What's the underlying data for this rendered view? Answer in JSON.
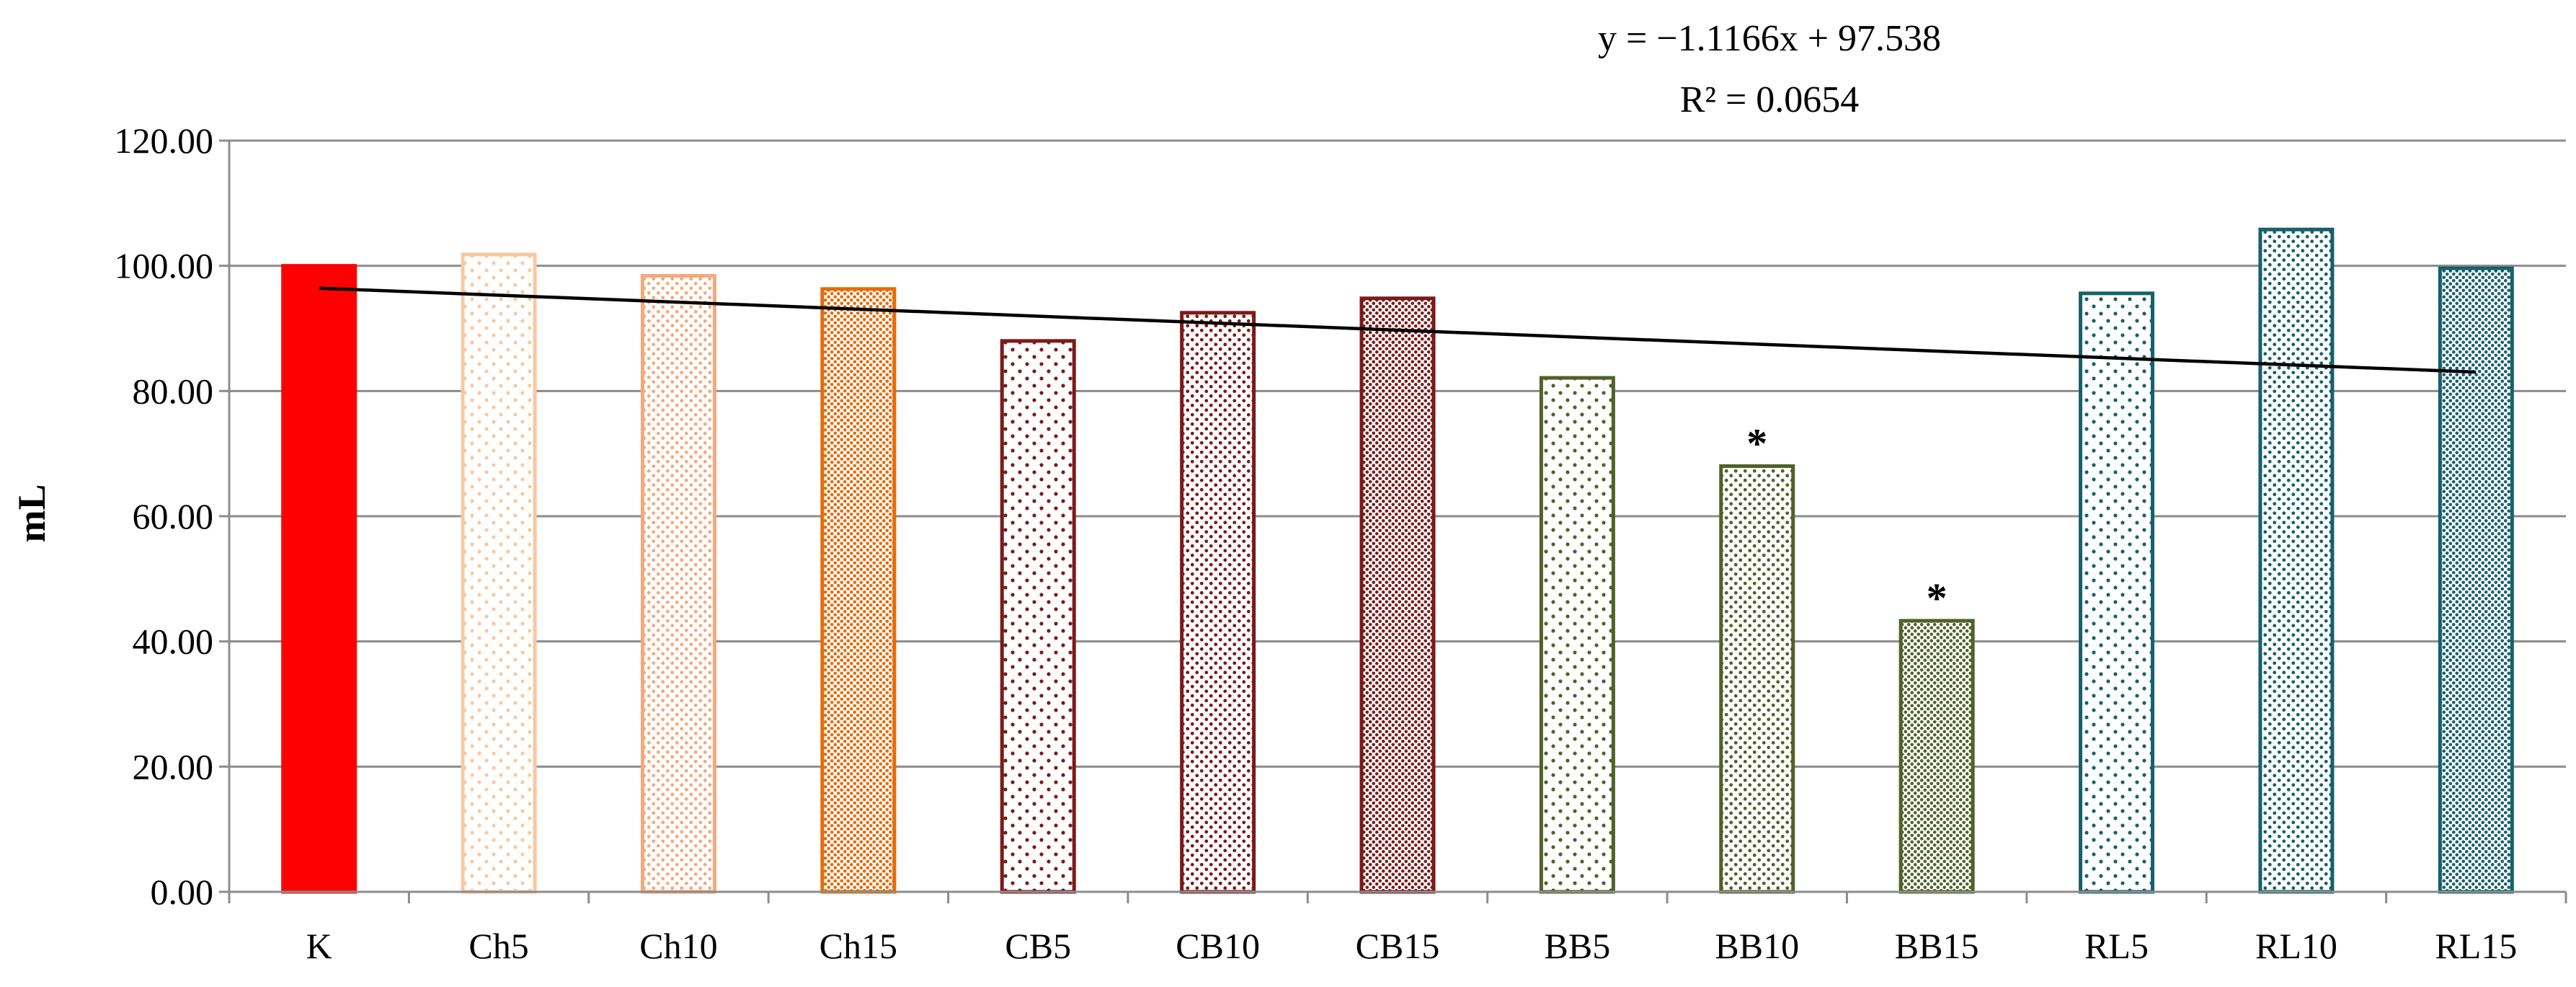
{
  "chart_data": {
    "type": "bar",
    "title": "",
    "xlabel": "",
    "ylabel": "mL",
    "ylim": [
      0,
      120
    ],
    "yticks": [
      "0.00",
      "20.00",
      "40.00",
      "60.00",
      "80.00",
      "100.00",
      "120.00"
    ],
    "categories": [
      "K",
      "Ch5",
      "Ch10",
      "Ch15",
      "CB5",
      "CB10",
      "CB15",
      "BB5",
      "BB10",
      "BB15",
      "RL5",
      "RL10",
      "RL15"
    ],
    "values": [
      100.0,
      101.8,
      98.4,
      96.3,
      88.0,
      92.5,
      94.8,
      82.1,
      68.0,
      43.3,
      95.6,
      105.8,
      99.6
    ],
    "annotations": [
      "",
      "",
      "",
      "",
      "",
      "",
      "",
      "",
      "*",
      "*",
      "",
      "",
      ""
    ],
    "bar_styles": [
      {
        "color": "#ff0000",
        "fill": "solid"
      },
      {
        "color": "#f9c8a0",
        "fill": "dots-sparse"
      },
      {
        "color": "#f4a97c",
        "fill": "dots-medium"
      },
      {
        "color": "#e46c0a",
        "fill": "dots-dense"
      },
      {
        "color": "#7b1a1a",
        "fill": "dots-sparse"
      },
      {
        "color": "#7b1a1a",
        "fill": "dots-medium"
      },
      {
        "color": "#7b1a1a",
        "fill": "dots-dense"
      },
      {
        "color": "#4f6228",
        "fill": "dots-sparse"
      },
      {
        "color": "#4f6228",
        "fill": "dots-medium"
      },
      {
        "color": "#4f6228",
        "fill": "dots-dense"
      },
      {
        "color": "#17606c",
        "fill": "dots-sparse"
      },
      {
        "color": "#17606c",
        "fill": "dots-medium"
      },
      {
        "color": "#17606c",
        "fill": "dots-dense"
      }
    ],
    "trendline": {
      "slope": -1.1166,
      "intercept": 97.538,
      "equation": "y = −1.1166x + 97.538",
      "r_squared": "R² = 0.0654",
      "color": "#000000"
    },
    "grid": true,
    "gridline_color": "#8c8c8c"
  }
}
